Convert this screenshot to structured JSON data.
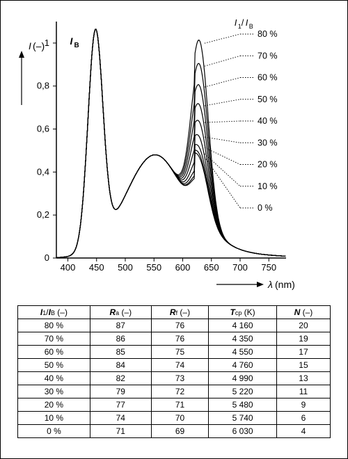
{
  "chart": {
    "type": "line",
    "xlim": [
      380,
      780
    ],
    "ylim": [
      0,
      1.1
    ],
    "xticks": [
      400,
      450,
      500,
      550,
      600,
      650,
      700,
      750
    ],
    "yticks": [
      0,
      0.2,
      0.4,
      0.6,
      0.8,
      1.0
    ],
    "ytick_labels": [
      "0",
      "0,2",
      "0,4",
      "0,6",
      "0,8",
      "1"
    ],
    "xlabel": "λ (nm)",
    "ylabel": "I (–)",
    "ratio_label": "I₁/I_B",
    "ib_label": "I_B",
    "line_color": "#000000",
    "bg_color": "#ffffff",
    "grid_color": "#000000",
    "line_width": 1.2,
    "fontsize_axis": 13,
    "fontsize_tick": 13,
    "peak_x": 630,
    "curve_labels": [
      "80 %",
      "70 %",
      "60 %",
      "50 %",
      "40 %",
      "30 %",
      "20 %",
      "10 %",
      "0 %"
    ],
    "peak_heights": [
      1.03,
      0.92,
      0.82,
      0.73,
      0.65,
      0.58,
      0.53,
      0.5,
      0.485
    ]
  },
  "table": {
    "columns": [
      {
        "main": "I₁/I_B",
        "unit": "(–)"
      },
      {
        "main": "R_a",
        "unit": "(–)"
      },
      {
        "main": "R_f",
        "unit": "(–)"
      },
      {
        "main": "T_cp",
        "unit": "(K)"
      },
      {
        "main": "N",
        "unit": "(–)"
      }
    ],
    "rows": [
      [
        "80 %",
        "87",
        "76",
        "4 160",
        "20"
      ],
      [
        "70 %",
        "86",
        "76",
        "4 350",
        "19"
      ],
      [
        "60 %",
        "85",
        "75",
        "4 550",
        "17"
      ],
      [
        "50 %",
        "84",
        "74",
        "4 760",
        "15"
      ],
      [
        "40 %",
        "82",
        "73",
        "4 990",
        "13"
      ],
      [
        "30 %",
        "79",
        "72",
        "5 220",
        "11"
      ],
      [
        "20 %",
        "77",
        "71",
        "5 480",
        "9"
      ],
      [
        "10 %",
        "74",
        "70",
        "5 740",
        "6"
      ],
      [
        "0 %",
        "71",
        "69",
        "6 030",
        "4"
      ]
    ]
  }
}
